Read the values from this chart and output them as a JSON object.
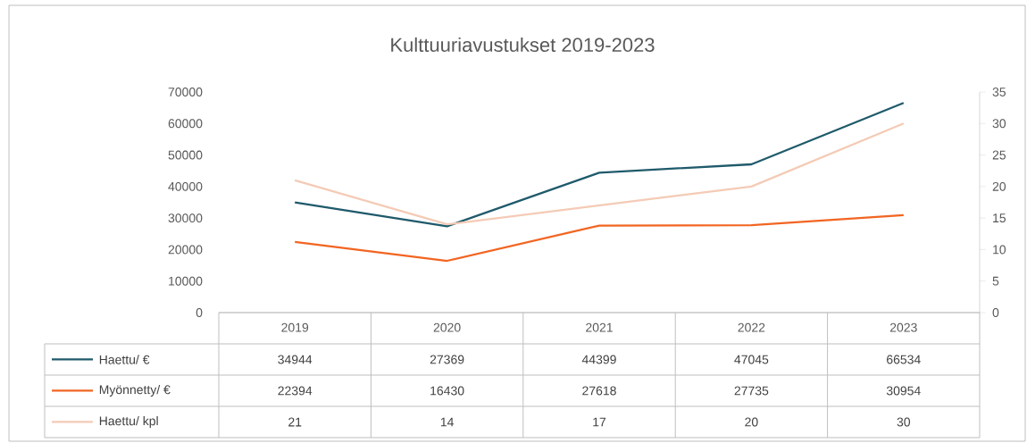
{
  "chart_data": {
    "type": "line",
    "title": "Kulttuuriavustukset 2019-2023",
    "categories": [
      "2019",
      "2020",
      "2021",
      "2022",
      "2023"
    ],
    "series": [
      {
        "name": "Haettu/ €",
        "color": "#1f5a6b",
        "values": [
          34944,
          27369,
          44399,
          47045,
          66534
        ]
      },
      {
        "name": "Myönnetty/ €",
        "color": "#f26522",
        "values": [
          22394,
          16430,
          27618,
          27735,
          30954
        ]
      },
      {
        "name": "Haettu/ kpl",
        "color": "#f4cbb6",
        "values": [
          21,
          14,
          17,
          20,
          30
        ],
        "axis": "y2"
      }
    ],
    "ylim": [
      0,
      70000
    ],
    "yticks": [
      0,
      10000,
      20000,
      30000,
      40000,
      50000,
      60000,
      70000
    ],
    "y2lim": [
      0,
      35
    ],
    "y2ticks": [
      0,
      5,
      10,
      15,
      20,
      25,
      30,
      35
    ],
    "grid": false,
    "legend": "bottom",
    "marker": "none",
    "line_style": "solid",
    "data_labels": true
  }
}
